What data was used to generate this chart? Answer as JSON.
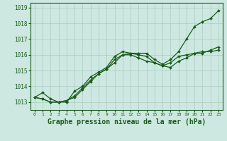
{
  "background_color": "#cce8e0",
  "plot_bg_color": "#cce8e0",
  "grid_color": "#b0cfc8",
  "line_color": "#1a5c1a",
  "marker_color": "#1a5c1a",
  "xlabel": "Graphe pression niveau de la mer (hPa)",
  "xlabel_fontsize": 7,
  "xlim": [
    -0.5,
    23.5
  ],
  "ylim": [
    1012.5,
    1019.3
  ],
  "yticks": [
    1013,
    1014,
    1015,
    1016,
    1017,
    1018,
    1019
  ],
  "xticks": [
    0,
    1,
    2,
    3,
    4,
    5,
    6,
    7,
    8,
    9,
    10,
    11,
    12,
    13,
    14,
    15,
    16,
    17,
    18,
    19,
    20,
    21,
    22,
    23
  ],
  "series": [
    [
      1013.3,
      1013.6,
      1013.2,
      1013.0,
      1013.0,
      1013.7,
      1014.0,
      1014.6,
      1014.9,
      1015.2,
      1015.9,
      1016.2,
      1016.1,
      1016.1,
      1016.1,
      1015.7,
      1015.4,
      1015.7,
      1016.2,
      1017.0,
      1017.8,
      1018.1,
      1018.3,
      1018.8
    ],
    [
      1013.3,
      1013.2,
      1013.0,
      1013.0,
      1013.1,
      1013.3,
      1013.8,
      1014.3,
      1014.8,
      1015.1,
      1015.5,
      1016.0,
      1016.0,
      1015.8,
      1015.6,
      1015.5,
      1015.3,
      1015.2,
      1015.6,
      1015.8,
      1016.1,
      1016.2,
      1016.2,
      1016.3
    ],
    [
      1013.3,
      1013.2,
      1013.0,
      1013.0,
      1013.1,
      1013.4,
      1013.9,
      1014.4,
      1014.8,
      1015.1,
      1015.7,
      1016.0,
      1016.1,
      1016.0,
      1015.9,
      1015.5,
      1015.3,
      1015.5,
      1015.9,
      1016.0,
      1016.1,
      1016.1,
      1016.3,
      1016.5
    ]
  ]
}
